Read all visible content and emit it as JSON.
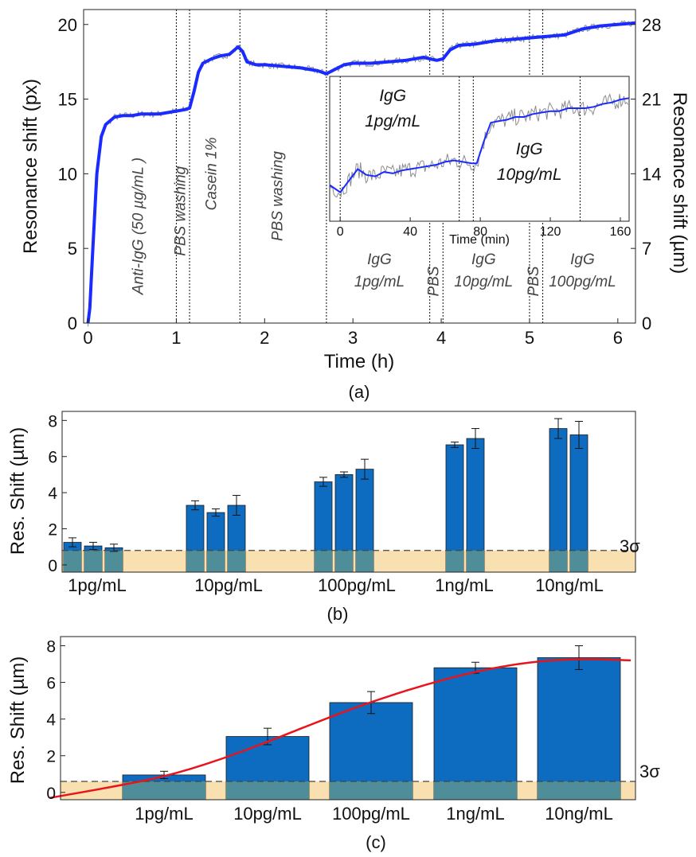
{
  "colors": {
    "trace": "#1a2bff",
    "raw": "#8c8c8c",
    "bar": "#0d6cbf",
    "fit": "#e8141b",
    "band": "#f9e0b0",
    "band_overlap": "#4f8d98",
    "grid_line": "#444444"
  },
  "chart_data": [
    {
      "id": "a",
      "type": "line",
      "caption": "(a)",
      "xlabel": "Time (h)",
      "ylabel": "Resonance shift (px)",
      "y2label": "Resonance shift (µm)",
      "xlim": [
        -0.05,
        6.2
      ],
      "ylim": [
        0,
        21
      ],
      "xticks": [
        0,
        1,
        2,
        3,
        4,
        5,
        6
      ],
      "yticks": [
        0,
        5,
        10,
        15,
        20
      ],
      "y2ticks": [
        {
          "label": "0",
          "y": 0
        },
        {
          "label": "7",
          "y": 5
        },
        {
          "label": "14",
          "y": 10
        },
        {
          "label": "21",
          "y": 15
        },
        {
          "label": "28",
          "y": 20
        }
      ],
      "events": [
        1.0,
        1.15,
        1.72,
        2.7,
        3.87,
        4.02,
        5.0,
        5.15
      ],
      "annotations": [
        {
          "lines": [
            "Anti-IgG (50 µg/mL )"
          ],
          "x": 0.62,
          "y": 6.5,
          "rotate": true
        },
        {
          "lines": [
            "PBS washing"
          ],
          "x": 1.1,
          "y": 7.5,
          "rotate": true
        },
        {
          "lines": [
            "Casein 1%"
          ],
          "x": 1.45,
          "y": 10.0,
          "rotate": true
        },
        {
          "lines": [
            "PBS washing"
          ],
          "x": 2.2,
          "y": 8.5,
          "rotate": true
        },
        {
          "lines": [
            "IgG",
            "1pg/mL"
          ],
          "x": 3.3,
          "y": 3.2,
          "rotate": false
        },
        {
          "lines": [
            "PBS"
          ],
          "x": 3.97,
          "y": 2.8,
          "rotate": true
        },
        {
          "lines": [
            "IgG",
            "10pg/mL"
          ],
          "x": 4.48,
          "y": 3.2,
          "rotate": false
        },
        {
          "lines": [
            "PBS"
          ],
          "x": 5.1,
          "y": 2.8,
          "rotate": true
        },
        {
          "lines": [
            "IgG",
            "100pg/mL"
          ],
          "x": 5.6,
          "y": 3.2,
          "rotate": false
        }
      ],
      "series": [
        {
          "x": [
            0,
            0.02,
            0.05,
            0.1,
            0.15,
            0.2,
            0.3,
            0.4,
            0.5,
            0.6,
            0.7,
            0.8,
            0.9,
            1.0,
            1.1,
            1.15,
            1.2,
            1.25,
            1.3,
            1.4,
            1.5,
            1.6,
            1.7,
            1.75,
            1.8,
            1.9,
            2.0,
            2.2,
            2.4,
            2.6,
            2.7,
            2.8,
            2.9,
            3.0,
            3.2,
            3.4,
            3.6,
            3.8,
            3.87,
            3.95,
            4.02,
            4.1,
            4.2,
            4.4,
            4.6,
            4.8,
            5.0,
            5.2,
            5.4,
            5.5,
            5.6,
            5.8,
            6.0,
            6.2
          ],
          "y": [
            0,
            1.0,
            4.5,
            10.0,
            12.5,
            13.3,
            13.8,
            13.9,
            13.9,
            14.0,
            14.0,
            14.0,
            14.1,
            14.2,
            14.3,
            14.4,
            15.5,
            16.8,
            17.4,
            17.7,
            17.9,
            18.0,
            18.5,
            18.2,
            17.5,
            17.3,
            17.3,
            17.2,
            17.1,
            16.9,
            16.7,
            17.0,
            17.3,
            17.4,
            17.4,
            17.5,
            17.6,
            17.8,
            17.7,
            17.6,
            17.7,
            18.3,
            18.6,
            18.7,
            18.9,
            19.0,
            19.1,
            19.2,
            19.3,
            19.5,
            19.7,
            19.9,
            20.0,
            20.1
          ]
        }
      ]
    },
    {
      "id": "a-inset",
      "type": "line",
      "xlabel": "Time (min)",
      "xlim": [
        -6,
        165
      ],
      "ylim": [
        0,
        1
      ],
      "xticks": [
        0,
        40,
        80,
        120,
        160
      ],
      "events": [
        0,
        68,
        76,
        137
      ],
      "annotations": [
        {
          "lines": [
            "IgG",
            "1pg/mL"
          ],
          "x": 30,
          "y": 0.82
        },
        {
          "lines": [
            "IgG",
            "10pg/mL"
          ],
          "x": 108,
          "y": 0.45
        }
      ],
      "series": [
        {
          "x": [
            -6,
            0,
            5,
            10,
            15,
            20,
            25,
            30,
            35,
            40,
            45,
            50,
            55,
            60,
            65,
            70,
            75,
            78,
            82,
            86,
            90,
            95,
            100,
            105,
            110,
            115,
            120,
            125,
            130,
            135,
            140,
            145,
            150,
            155,
            160,
            165
          ],
          "y": [
            0.25,
            0.2,
            0.28,
            0.36,
            0.32,
            0.31,
            0.34,
            0.33,
            0.35,
            0.36,
            0.37,
            0.38,
            0.39,
            0.41,
            0.42,
            0.41,
            0.4,
            0.4,
            0.55,
            0.68,
            0.69,
            0.7,
            0.72,
            0.72,
            0.74,
            0.75,
            0.76,
            0.76,
            0.78,
            0.78,
            0.78,
            0.79,
            0.81,
            0.82,
            0.84,
            0.85
          ]
        }
      ]
    },
    {
      "id": "b",
      "type": "bar",
      "caption": "(b)",
      "ylabel": "Res. Shift (µm)",
      "ylim": [
        -0.4,
        8.5
      ],
      "yticks": [
        0,
        2,
        4,
        6,
        8
      ],
      "threshold": {
        "value": 0.8,
        "label": "3σ"
      },
      "categories": [
        "1pg/mL",
        "10pg/mL",
        "100pg/mL",
        "1ng/mL",
        "10ng/mL"
      ],
      "groups": [
        {
          "values": [
            1.25,
            1.05,
            0.95
          ],
          "errors": [
            0.25,
            0.2,
            0.2
          ]
        },
        {
          "values": [
            3.3,
            2.9,
            3.3
          ],
          "errors": [
            0.25,
            0.2,
            0.55
          ]
        },
        {
          "values": [
            4.6,
            5.0,
            5.3
          ],
          "errors": [
            0.25,
            0.15,
            0.55
          ]
        },
        {
          "values": [
            6.65,
            7.0
          ],
          "errors": [
            0.15,
            0.55
          ]
        },
        {
          "values": [
            7.55,
            7.2
          ],
          "errors": [
            0.55,
            0.75
          ]
        }
      ]
    },
    {
      "id": "c",
      "type": "bar",
      "caption": "(c)",
      "ylabel": "Res. Shift (µm)",
      "ylim": [
        -0.4,
        8.5
      ],
      "yticks": [
        0,
        2,
        4,
        6,
        8
      ],
      "threshold": {
        "value": 0.6,
        "label": "3σ"
      },
      "categories": [
        "1pg/mL",
        "10pg/mL",
        "100pg/mL",
        "1ng/mL",
        "10ng/mL"
      ],
      "values": [
        0.95,
        3.05,
        4.9,
        6.8,
        7.35
      ],
      "errors": [
        0.2,
        0.45,
        0.6,
        0.3,
        0.65
      ],
      "fit": {
        "x": [
          -1.1,
          -0.5,
          0,
          0.5,
          1.0,
          1.5,
          2.0,
          2.5,
          3.0,
          3.5,
          4.0,
          4.5
        ],
        "y": [
          -0.3,
          0.3,
          0.85,
          1.7,
          2.75,
          3.9,
          4.95,
          5.85,
          6.6,
          7.1,
          7.3,
          7.2
        ]
      }
    }
  ]
}
